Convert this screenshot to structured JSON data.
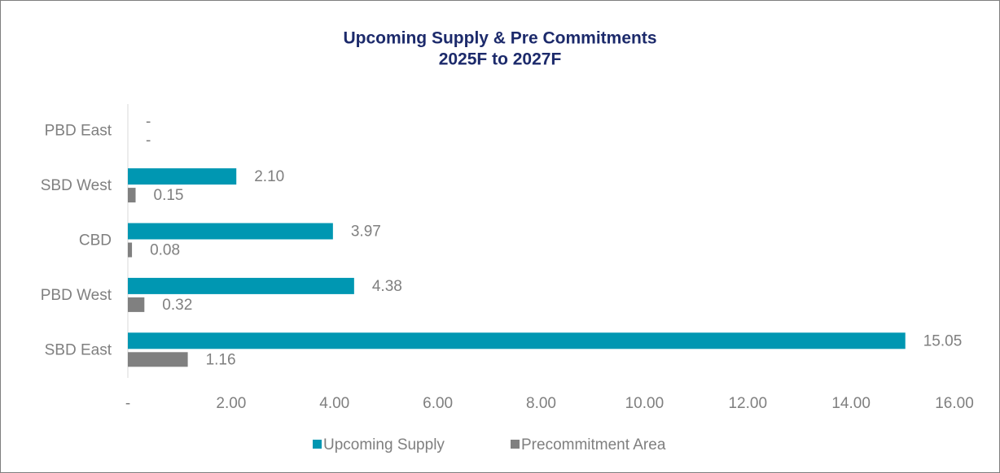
{
  "chart_data": {
    "type": "hbar",
    "title": "Upcoming Supply & Pre Commitments",
    "subtitle": "2025F to 2027F",
    "categories": [
      "PBD East",
      "SBD West",
      "CBD",
      "PBD West",
      "SBD East"
    ],
    "series": [
      {
        "name": "Upcoming Supply",
        "color": "#0097b2",
        "values": [
          0,
          2.1,
          3.97,
          4.38,
          15.05
        ],
        "value_labels": [
          "-",
          "2.10",
          "3.97",
          "4.38",
          "15.05"
        ]
      },
      {
        "name": "Precommitment Area",
        "color": "#808080",
        "values": [
          0,
          0.15,
          0.08,
          0.32,
          1.16
        ],
        "value_labels": [
          "-",
          "0.15",
          "0.08",
          "0.32",
          "1.16"
        ]
      }
    ],
    "xlim": [
      0,
      16
    ],
    "xticks": [
      {
        "value": 0,
        "label": "-"
      },
      {
        "value": 2,
        "label": "2.00"
      },
      {
        "value": 4,
        "label": "4.00"
      },
      {
        "value": 6,
        "label": "6.00"
      },
      {
        "value": 8,
        "label": "8.00"
      },
      {
        "value": 10,
        "label": "10.00"
      },
      {
        "value": 12,
        "label": "12.00"
      },
      {
        "value": 14,
        "label": "14.00"
      },
      {
        "value": 16,
        "label": "16.00"
      }
    ],
    "grid": false,
    "legend": "bottom"
  }
}
